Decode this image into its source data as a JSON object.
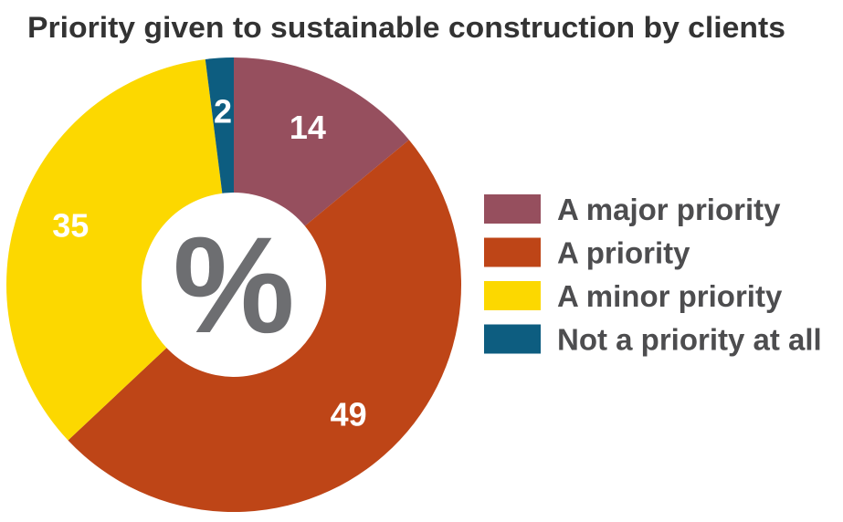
{
  "chart_data": {
    "type": "pie",
    "variant": "donut",
    "title": "Priority given to sustainable construction by clients",
    "center_label": "%",
    "categories": [
      "A major priority",
      "A priority",
      "A minor priority",
      "Not a priority at all"
    ],
    "values": [
      14,
      49,
      35,
      2
    ],
    "colors": [
      "#964F5E",
      "#BE4517",
      "#FCD800",
      "#0D5D80"
    ],
    "data_labels": [
      "14",
      "49",
      "35",
      "2"
    ],
    "legend_position": "right",
    "start": "top",
    "direction": "clockwise"
  }
}
